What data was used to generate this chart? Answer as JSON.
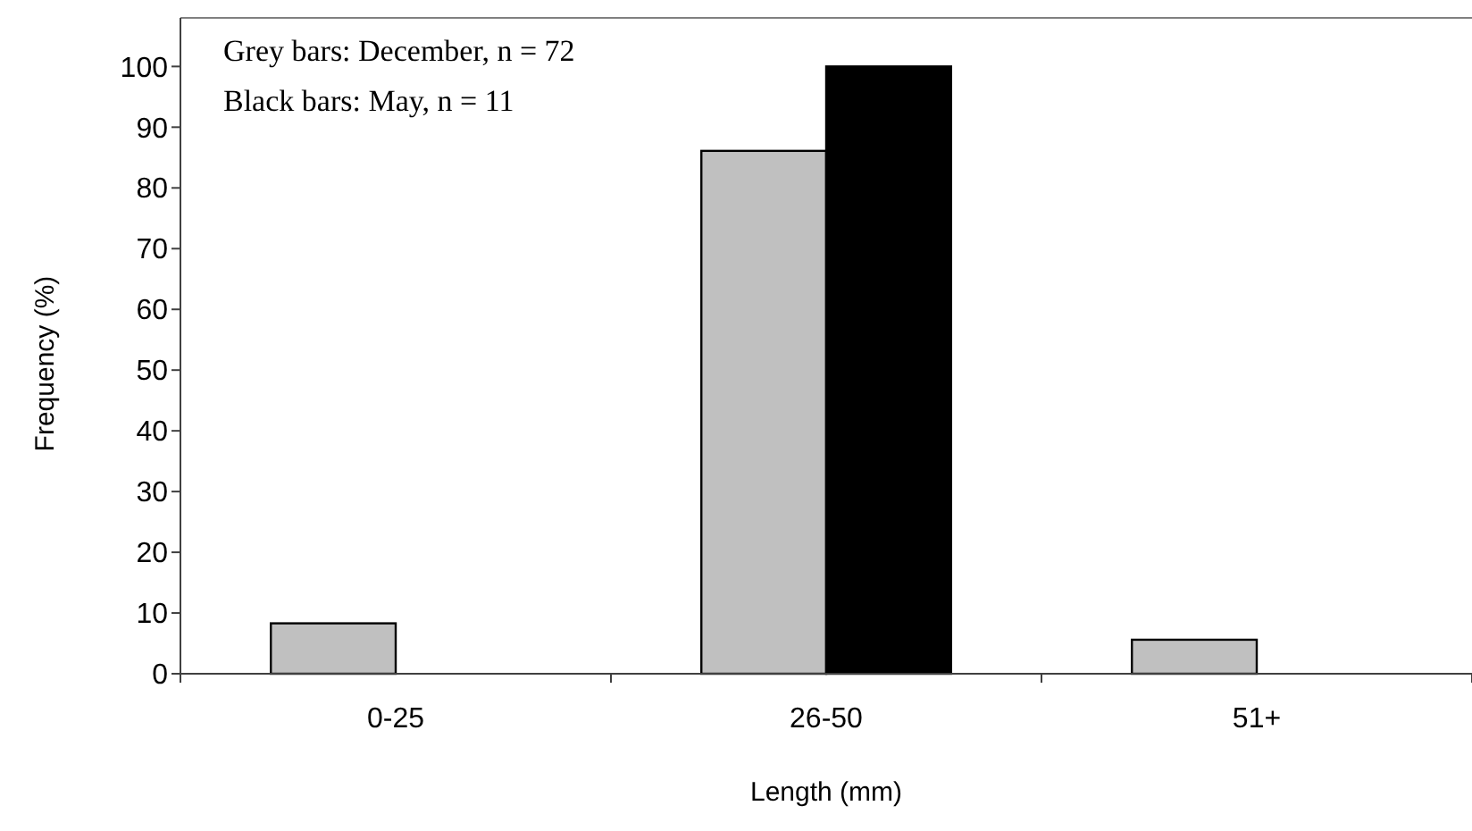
{
  "chart_data": {
    "type": "bar",
    "xlabel": "Length (mm)",
    "ylabel": "Frequency (%)",
    "categories": [
      "0-25",
      "26-50",
      "51+"
    ],
    "series": [
      {
        "color": "#c0c0c0",
        "values": [
          8.3,
          86.1,
          5.6
        ]
      },
      {
        "color": "#000000",
        "values": [
          0,
          100,
          0
        ]
      }
    ],
    "ylim": [
      0,
      108
    ],
    "yticks": [
      0,
      10,
      20,
      30,
      40,
      50,
      60,
      70,
      80,
      90,
      100
    ],
    "grid": false,
    "annotations": [
      "Grey bars: December, n = 72",
      "Black bars: May, n = 11"
    ]
  }
}
